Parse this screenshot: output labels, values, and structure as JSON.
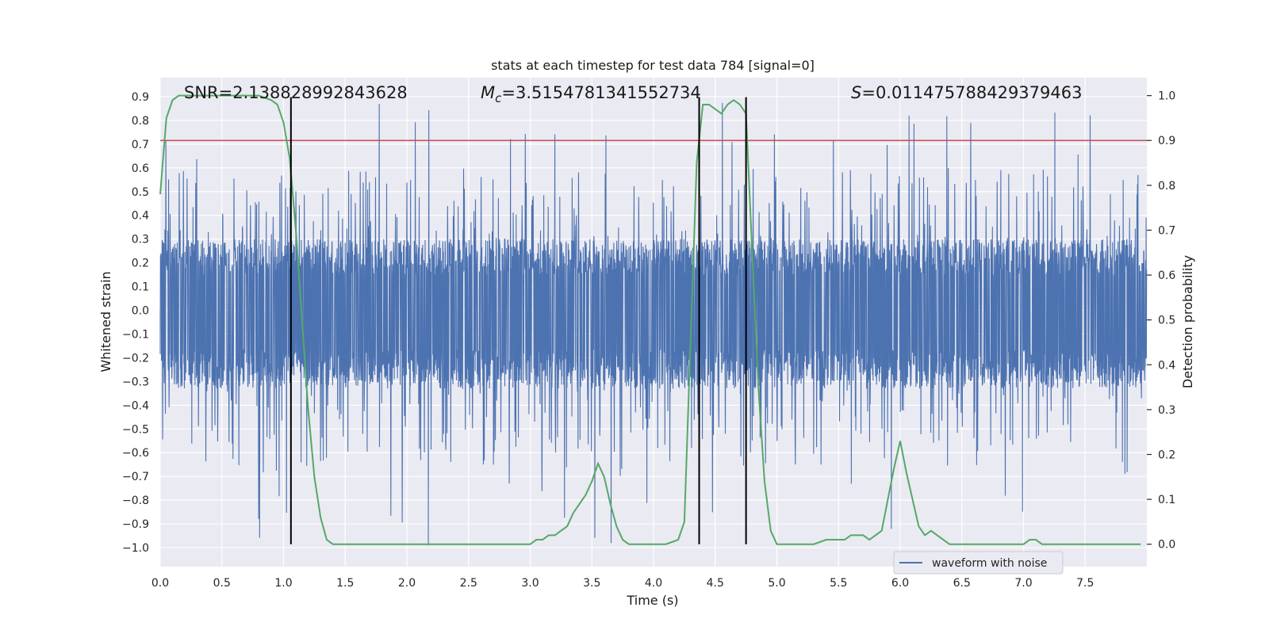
{
  "chart_data": {
    "type": "line",
    "title": "stats at each timestep for test data 784 [signal=0]",
    "xlabel": "Time (s)",
    "ylabel_left": "Whitened strain",
    "ylabel_right": "Detection probability",
    "xlim": [
      0.0,
      8.0
    ],
    "ylim_left": [
      -1.08,
      0.98
    ],
    "ylim_right": [
      -0.05,
      1.04
    ],
    "x_ticks": [
      "0.0",
      "0.5",
      "1.0",
      "1.5",
      "2.0",
      "2.5",
      "3.0",
      "3.5",
      "4.0",
      "4.5",
      "5.0",
      "5.5",
      "6.0",
      "6.5",
      "7.0",
      "7.5"
    ],
    "y_left_ticks": [
      "0.9",
      "0.8",
      "0.7",
      "0.6",
      "0.5",
      "0.4",
      "0.3",
      "0.2",
      "0.1",
      "0.0",
      "−0.1",
      "−0.2",
      "−0.3",
      "−0.4",
      "−0.5",
      "−0.6",
      "−0.7",
      "−0.8",
      "−0.9",
      "−1.0"
    ],
    "y_right_ticks": [
      "1.0",
      "0.9",
      "0.8",
      "0.7",
      "0.6",
      "0.5",
      "0.4",
      "0.3",
      "0.2",
      "0.1",
      "0.0"
    ],
    "grid": true,
    "legend_placement": "lower-right",
    "colors": {
      "background": "#eaeaf2",
      "grid": "#ffffff",
      "waveform": "#4c72b0",
      "probability": "#55a868",
      "threshold": "#c44e52",
      "vlines": "#000000"
    },
    "annotations": {
      "snr_label": "SNR=2.138828992843628",
      "mc_symbol": "M",
      "mc_subscript": "c",
      "mc_value": "=3.5154781341552734",
      "s_symbol": "S",
      "s_value": "=0.011475788429379463"
    },
    "series": [
      {
        "name": "waveform with noise",
        "axis": "left",
        "description_of_values": "noise",
        "band": {
          "typical_upper": 0.3,
          "typical_lower": -0.33,
          "peak_max": 0.88,
          "peak_min": -1.0
        }
      },
      {
        "axis": "right",
        "x": [
          0.0,
          0.05,
          0.1,
          0.15,
          0.2,
          0.3,
          0.4,
          0.5,
          0.6,
          0.7,
          0.8,
          0.9,
          0.95,
          1.0,
          1.05,
          1.1,
          1.15,
          1.2,
          1.25,
          1.3,
          1.35,
          1.4,
          1.5,
          1.6,
          1.7,
          1.8,
          1.9,
          2.0,
          2.1,
          2.2,
          2.4,
          2.6,
          2.8,
          3.0,
          3.05,
          3.1,
          3.15,
          3.2,
          3.25,
          3.3,
          3.35,
          3.4,
          3.45,
          3.5,
          3.55,
          3.6,
          3.65,
          3.7,
          3.75,
          3.8,
          3.85,
          3.9,
          3.95,
          4.0,
          4.1,
          4.2,
          4.25,
          4.3,
          4.35,
          4.4,
          4.45,
          4.5,
          4.55,
          4.6,
          4.65,
          4.7,
          4.75,
          4.8,
          4.85,
          4.9,
          4.95,
          5.0,
          5.05,
          5.1,
          5.2,
          5.3,
          5.4,
          5.45,
          5.5,
          5.55,
          5.6,
          5.65,
          5.7,
          5.75,
          5.8,
          5.85,
          5.9,
          5.95,
          6.0,
          6.05,
          6.1,
          6.15,
          6.2,
          6.25,
          6.3,
          6.35,
          6.4,
          6.5,
          6.6,
          6.7,
          6.8,
          6.9,
          7.0,
          7.05,
          7.1,
          7.15,
          7.2,
          7.3,
          7.4,
          7.5,
          7.6,
          7.7,
          7.8,
          7.9,
          7.95
        ],
        "y": [
          0.78,
          0.95,
          0.99,
          1.0,
          1.0,
          1.0,
          1.0,
          1.0,
          1.0,
          1.0,
          1.0,
          0.99,
          0.98,
          0.94,
          0.86,
          0.7,
          0.5,
          0.3,
          0.15,
          0.06,
          0.01,
          0.0,
          0.0,
          0.0,
          0.0,
          0.0,
          0.0,
          0.0,
          0.0,
          0.0,
          0.0,
          0.0,
          0.0,
          0.0,
          0.01,
          0.01,
          0.02,
          0.02,
          0.03,
          0.04,
          0.07,
          0.09,
          0.11,
          0.14,
          0.18,
          0.15,
          0.09,
          0.04,
          0.01,
          0.0,
          0.0,
          0.0,
          0.0,
          0.0,
          0.0,
          0.01,
          0.05,
          0.45,
          0.85,
          0.98,
          0.98,
          0.97,
          0.96,
          0.98,
          0.99,
          0.98,
          0.96,
          0.65,
          0.35,
          0.14,
          0.03,
          0.0,
          0.0,
          0.0,
          0.0,
          0.0,
          0.01,
          0.01,
          0.01,
          0.01,
          0.02,
          0.02,
          0.02,
          0.01,
          0.02,
          0.03,
          0.1,
          0.17,
          0.23,
          0.16,
          0.1,
          0.04,
          0.02,
          0.03,
          0.02,
          0.01,
          0.0,
          0.0,
          0.0,
          0.0,
          0.0,
          0.0,
          0.0,
          0.01,
          0.01,
          0.0,
          0.0,
          0.0,
          0.0,
          0.0,
          0.0,
          0.0,
          0.0,
          0.0,
          0.0
        ]
      }
    ],
    "threshold_line": {
      "axis": "right",
      "y": 0.9
    },
    "vertical_lines_x": [
      1.06,
      4.37,
      4.75
    ]
  }
}
